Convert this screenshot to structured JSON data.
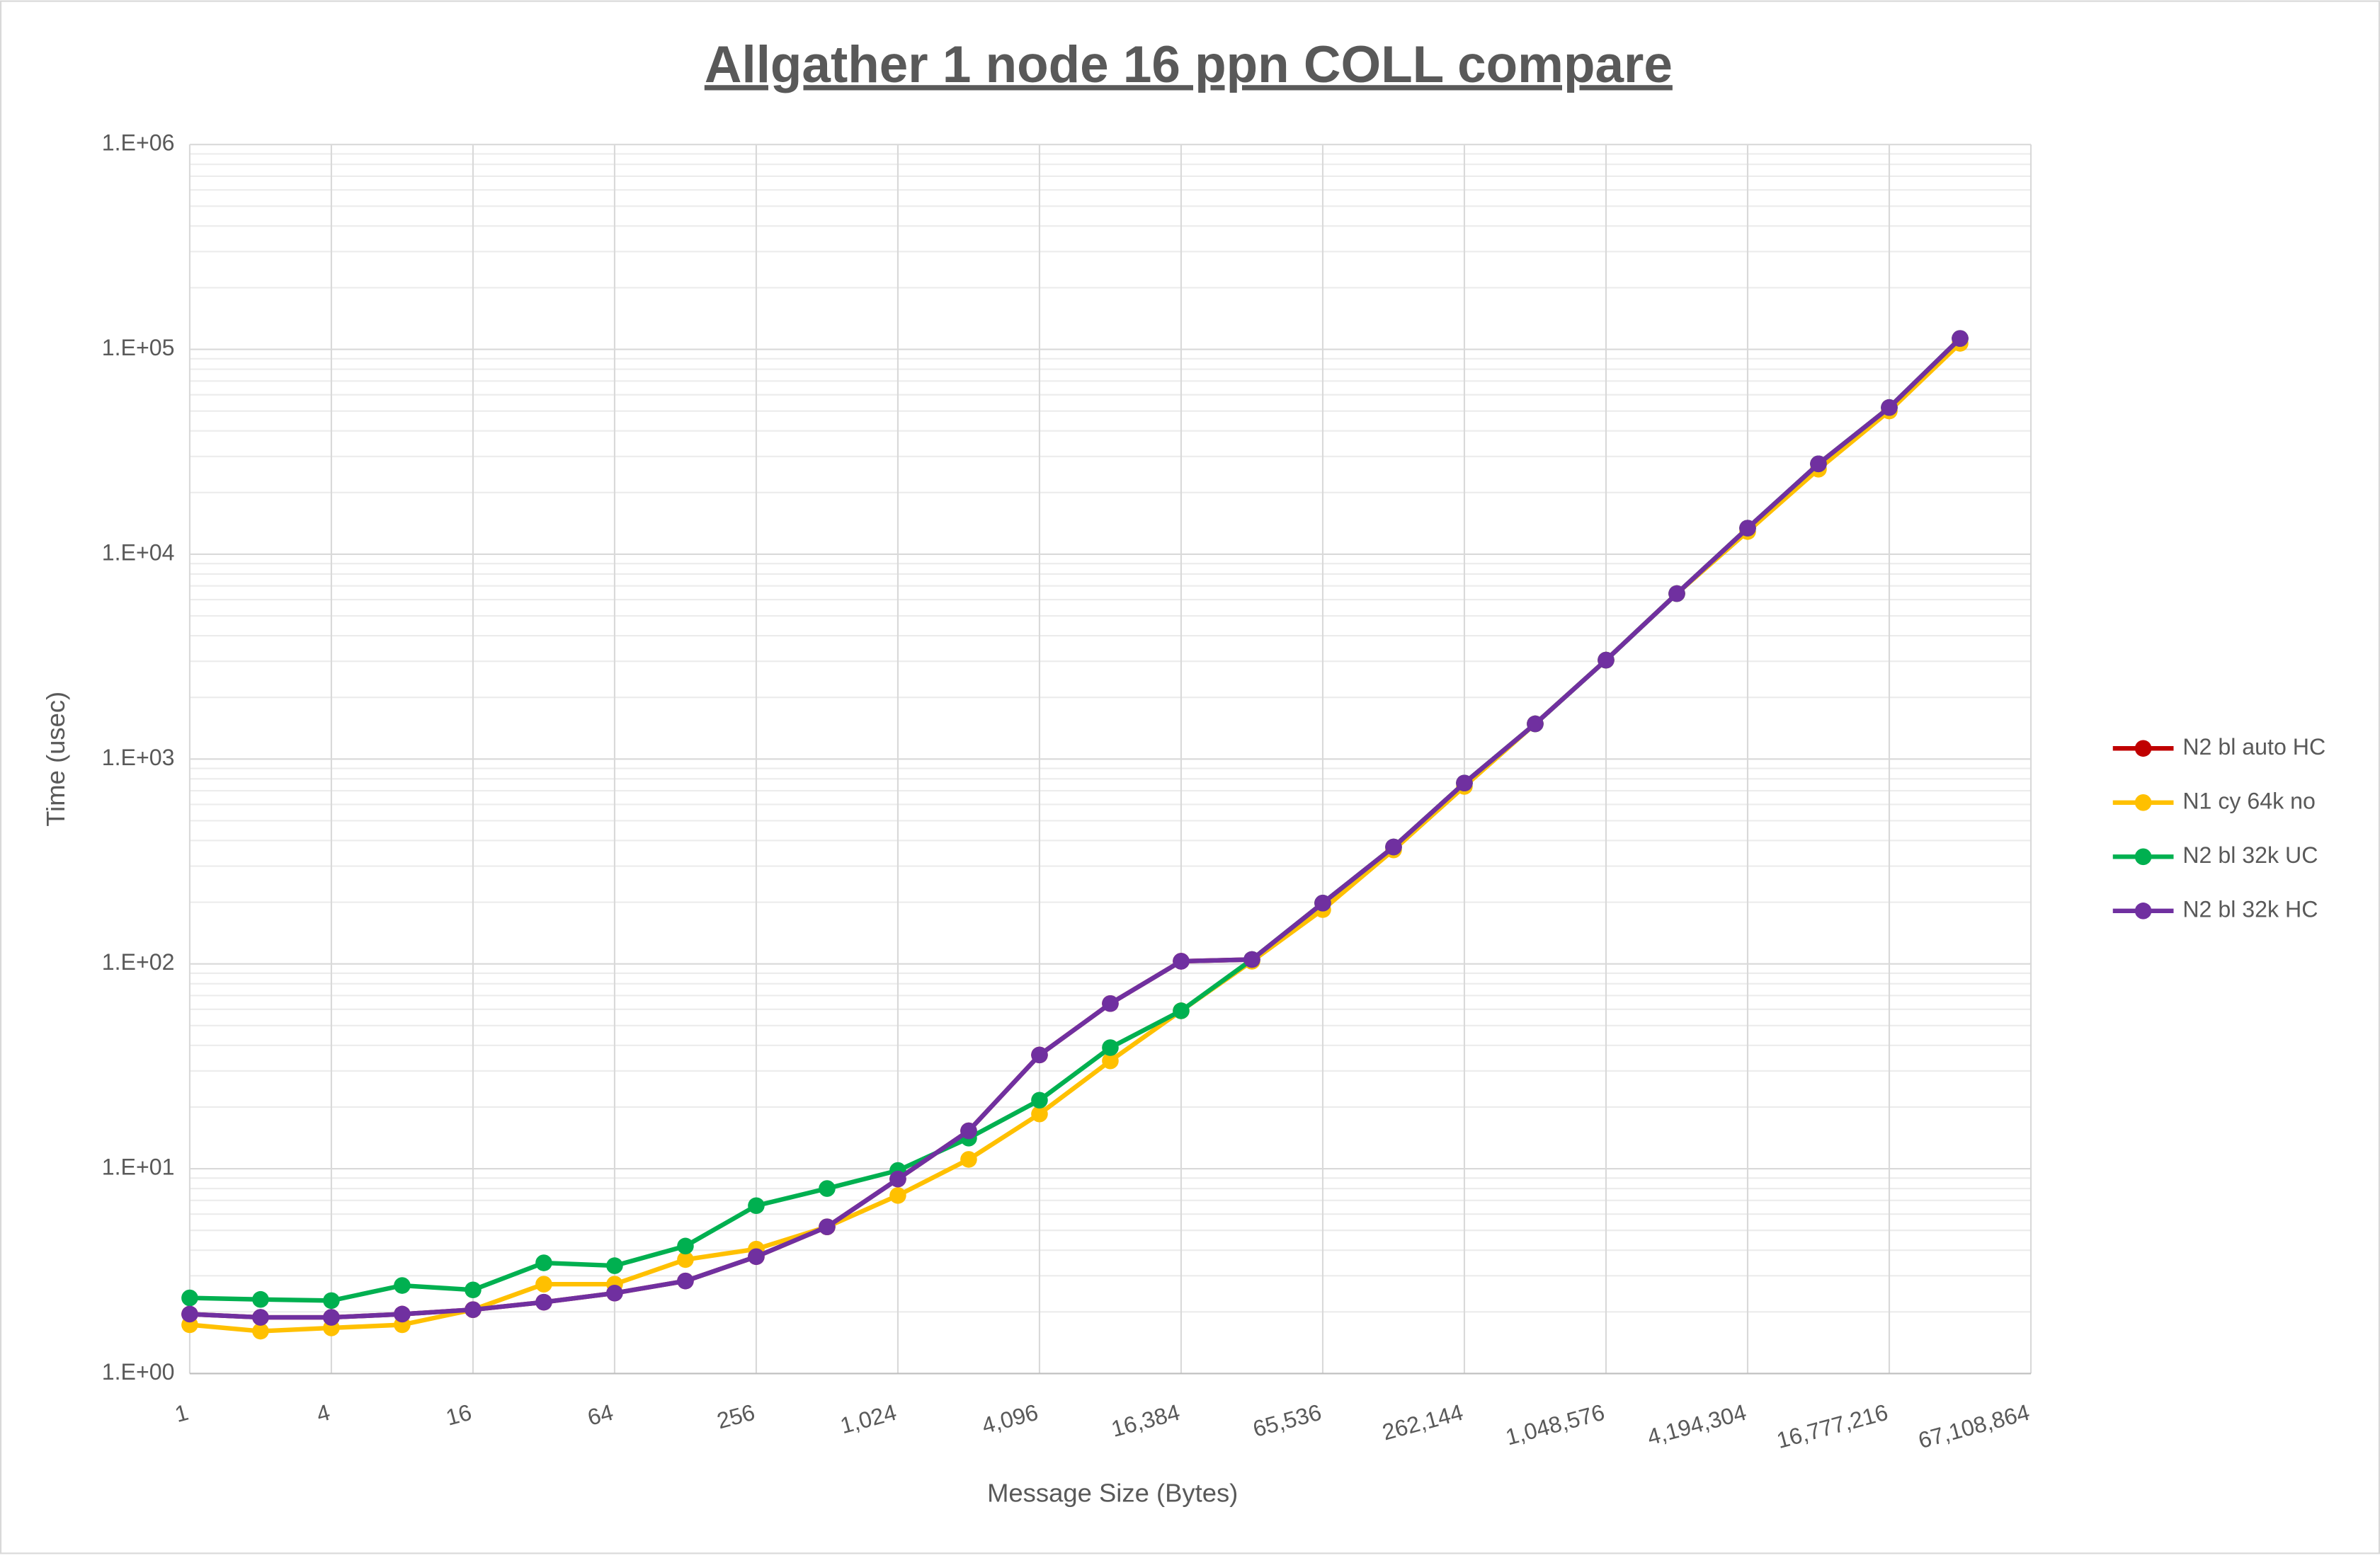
{
  "chart_data": {
    "type": "line",
    "title": "Allgather 1 node 16 ppn COLL compare",
    "x_label": "Message Size (Bytes)",
    "y_label": "Time (usec)",
    "x": [
      1,
      2,
      4,
      8,
      16,
      32,
      64,
      128,
      256,
      512,
      1024,
      2048,
      4096,
      8192,
      16384,
      32768,
      65536,
      131072,
      262144,
      524288,
      1048576,
      2097152,
      4194304,
      8388608,
      16777216,
      33554432
    ],
    "xlim": [
      1,
      67108864
    ],
    "xticks": [
      1,
      4,
      16,
      64,
      256,
      {
        "value": 1024,
        "label": "1,024"
      },
      {
        "value": 4096,
        "label": "4,096"
      },
      {
        "value": 16384,
        "label": "16,384"
      },
      {
        "value": 65536,
        "label": "65,536"
      },
      {
        "value": 262144,
        "label": "262,144"
      },
      {
        "value": 1048576,
        "label": "1,048,576"
      },
      {
        "value": 4194304,
        "label": "4,194,304"
      },
      {
        "value": 16777216,
        "label": "16,777,216"
      },
      {
        "value": 67108864,
        "label": "67,108,864"
      }
    ],
    "x_log_base": 2,
    "ylim": [
      1,
      1000000
    ],
    "yticks": [
      {
        "value": 1,
        "label": "1.E+00"
      },
      {
        "value": 10,
        "label": "1.E+01"
      },
      {
        "value": 100,
        "label": "1.E+02"
      },
      {
        "value": 1000,
        "label": "1.E+03"
      },
      {
        "value": 10000,
        "label": "1.E+04"
      },
      {
        "value": 100000,
        "label": "1.E+05"
      },
      {
        "value": 1000000,
        "label": "1.E+06"
      }
    ],
    "y_log_base": 10,
    "grid": true,
    "minor_grid": true,
    "legend": "right",
    "series": [
      {
        "name": "N2 bl auto HC",
        "color": "#c00000",
        "values": [
          1.95,
          1.88,
          1.88,
          1.95,
          2.05,
          2.23,
          2.47,
          2.83,
          3.72,
          5.2,
          8.9,
          15.3,
          35.9,
          64,
          103,
          105,
          198,
          372,
          763,
          1485,
          3040,
          6420,
          13400,
          27600,
          52000,
          113000
        ]
      },
      {
        "name": "N1 cy 64k no",
        "color": "#ffc000",
        "values": [
          1.73,
          1.61,
          1.67,
          1.73,
          2.05,
          2.73,
          2.73,
          3.6,
          4.05,
          5.2,
          7.4,
          11.1,
          18.5,
          33.6,
          59,
          103,
          184,
          360,
          735,
          1485,
          3040,
          6420,
          12900,
          26000,
          50000,
          107000
        ]
      },
      {
        "name": "N2 bl 32k UC",
        "color": "#00b050",
        "values": [
          2.34,
          2.3,
          2.27,
          2.69,
          2.56,
          3.47,
          3.36,
          4.19,
          6.6,
          8.0,
          9.8,
          14.1,
          21.6,
          39,
          59,
          105,
          198,
          372,
          763,
          1485,
          3040,
          6420,
          13400,
          27600,
          52000,
          113000
        ]
      },
      {
        "name": "N2 bl 32k HC",
        "color": "#7030a0",
        "values": [
          1.95,
          1.88,
          1.88,
          1.95,
          2.05,
          2.23,
          2.47,
          2.83,
          3.72,
          5.2,
          8.9,
          15.3,
          35.9,
          64,
          103,
          105,
          198,
          372,
          763,
          1485,
          3040,
          6420,
          13400,
          27600,
          52000,
          113000
        ]
      }
    ]
  }
}
